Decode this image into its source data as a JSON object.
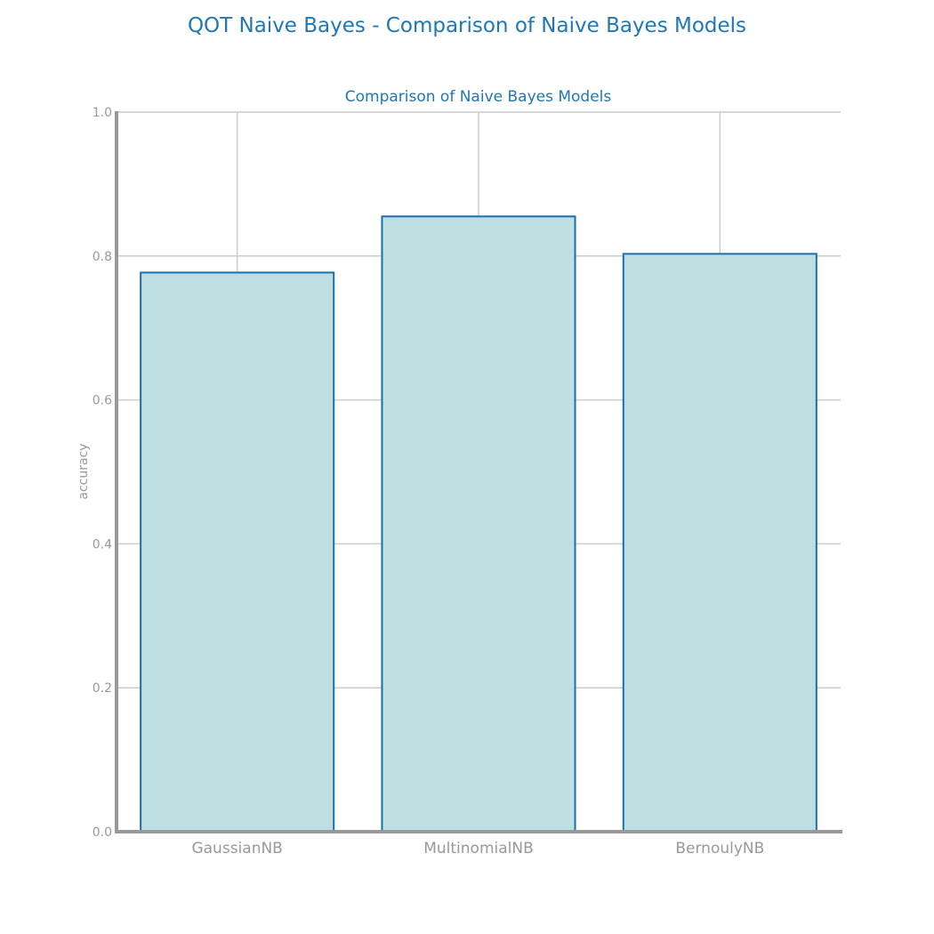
{
  "suptitle": "QOT Naive Bayes - Comparison of Naive Bayes Models",
  "colors": {
    "title": "#1f77b4",
    "bar_fill": "#bfdee2",
    "bar_edge": "#1a6fae",
    "axis": "#999999",
    "grid": "#cccccc",
    "tick_text": "#999999"
  },
  "chart_data": {
    "type": "bar",
    "title": "Comparison of Naive Bayes Models",
    "xlabel": "",
    "ylabel": "accuracy",
    "categories": [
      "GaussianNB",
      "MultinomialNB",
      "BernoulyNB"
    ],
    "values": [
      0.777,
      0.855,
      0.803
    ],
    "ylim": [
      0,
      1.0
    ],
    "yticks": [
      "0.0",
      "0.2",
      "0.4",
      "0.6",
      "0.8",
      "1.0"
    ],
    "grid": true,
    "legend": false
  }
}
